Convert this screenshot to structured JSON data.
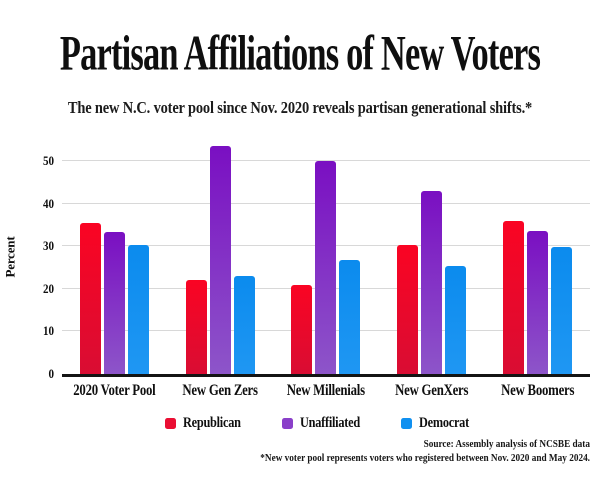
{
  "header": {
    "title": "Partisan Affiliations of New Voters",
    "subtitle": "The new N.C. voter pool since Nov. 2020 reveals partisan generational shifts.*"
  },
  "chart_data": {
    "type": "bar",
    "title": "Partisan Affiliations of New Voters",
    "subtitle": "The new N.C. voter pool since Nov. 2020 reveals partisan generational shifts.*",
    "categories": [
      "2020 Voter Pool",
      "New Gen Zers",
      "New Millenials",
      "New GenXers",
      "New Boomers"
    ],
    "series": [
      {
        "name": "Republican",
        "color": "#ea0e33",
        "gradient_top": "#fa0423",
        "gradient_bottom": "#d90d33",
        "values": [
          35.5,
          22,
          21,
          30.3,
          36
        ]
      },
      {
        "name": "Unaffiliated",
        "color": "#8a3fc9",
        "gradient_top": "#7a0fc2",
        "gradient_bottom": "#8d55c9",
        "values": [
          33.3,
          53.5,
          50,
          43,
          33.7
        ]
      },
      {
        "name": "Democrat",
        "color": "#1090f0",
        "gradient_top": "#0b8bee",
        "gradient_bottom": "#1f97f3",
        "values": [
          30.3,
          23,
          26.7,
          25.3,
          29.8
        ]
      }
    ],
    "xlabel": "",
    "ylabel": "Percent",
    "yticks": [
      0,
      10,
      20,
      30,
      40,
      50
    ],
    "ylim": [
      0,
      55
    ],
    "grid": true,
    "legend_position": "bottom"
  },
  "footer": {
    "source": "Source: Assembly analysis of NCSBE data",
    "note": "*New voter pool represents voters who registered between Nov. 2020 and May 2024."
  }
}
